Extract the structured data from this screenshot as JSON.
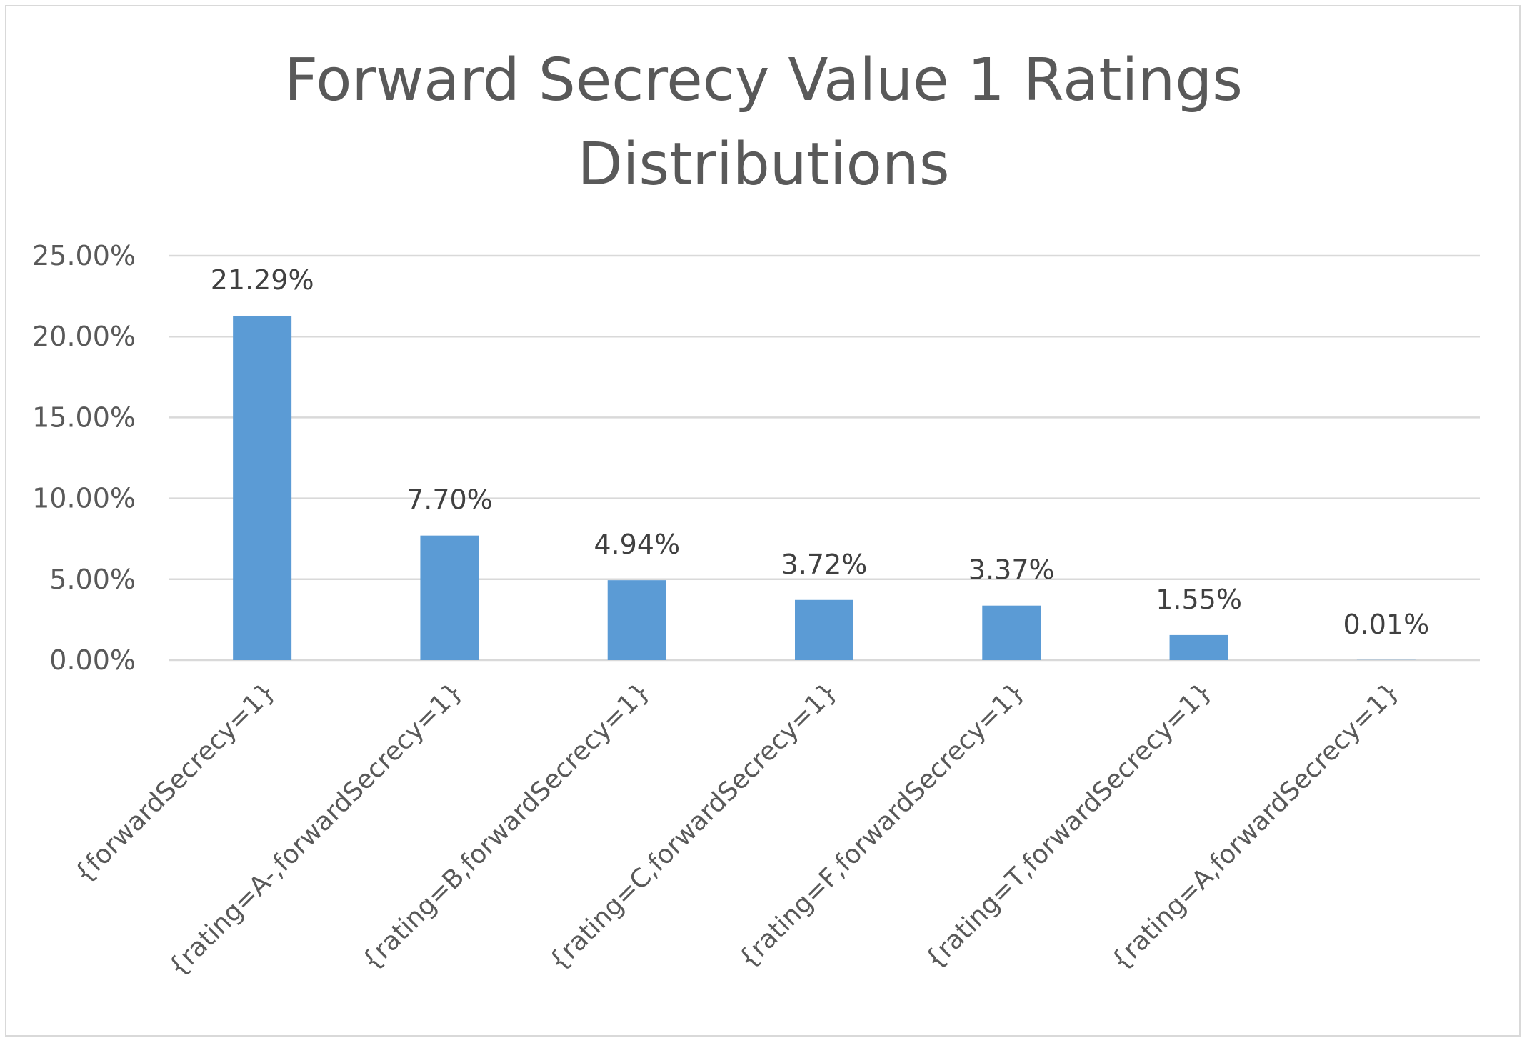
{
  "chart_data": {
    "type": "bar",
    "title": "Forward Secrecy Value 1 Ratings Distributions",
    "title_lines": [
      "Forward Secrecy Value 1 Ratings",
      "Distributions"
    ],
    "xlabel": "",
    "ylabel": "",
    "categories": [
      "{forwardSecrecy=1}",
      "{rating=A-,forwardSecrecy=1}",
      "{rating=B,forwardSecrecy=1}",
      "{rating=C,forwardSecrecy=1}",
      "{rating=F,forwardSecrecy=1}",
      "{rating=T,forwardSecrecy=1}",
      "{rating=A,forwardSecrecy=1}"
    ],
    "values": [
      21.29,
      7.7,
      4.94,
      3.72,
      3.37,
      1.55,
      0.01
    ],
    "data_labels": [
      "21.29%",
      "7.70%",
      "4.94%",
      "3.72%",
      "3.37%",
      "1.55%",
      "0.01%"
    ],
    "ylim": [
      0,
      25
    ],
    "yticks": [
      0,
      5,
      10,
      15,
      20,
      25
    ],
    "ytick_labels": [
      "0.00%",
      "5.00%",
      "10.00%",
      "15.00%",
      "20.00%",
      "25.00%"
    ],
    "grid": true,
    "legend": "none",
    "colors": {
      "bar": "#5b9bd5",
      "grid": "#d9d9d9",
      "text": "#595959",
      "border": "#d9d9d9"
    }
  }
}
